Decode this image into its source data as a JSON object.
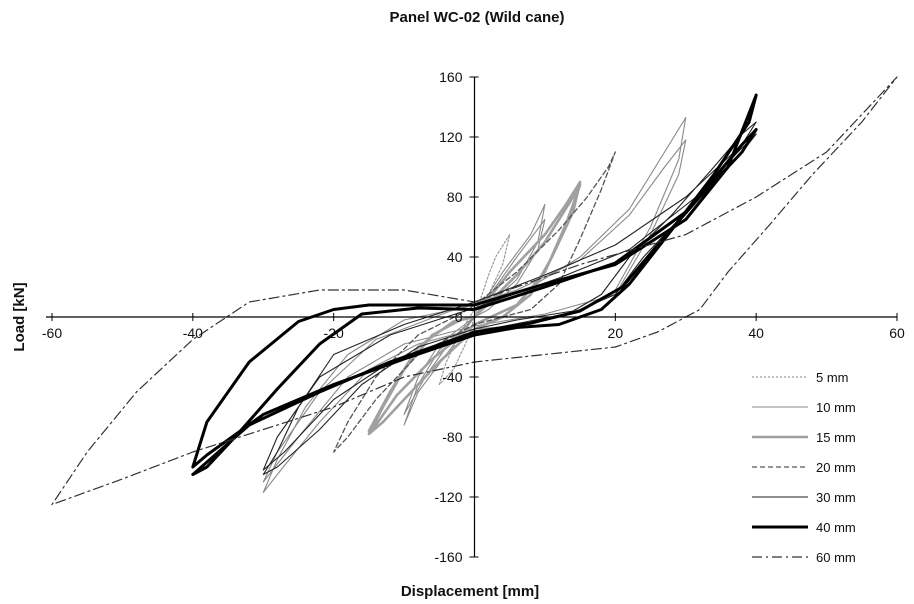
{
  "chart_data": {
    "type": "line",
    "title": "Panel WC-02 (Wild cane)",
    "xlabel": "Displacement [mm]",
    "ylabel": "Load [kN]",
    "xlim": [
      -60,
      60
    ],
    "ylim": [
      -160,
      160
    ],
    "x_ticks": [
      -60,
      -40,
      -20,
      0,
      20,
      40,
      60
    ],
    "y_ticks": [
      -160,
      -120,
      -80,
      -40,
      0,
      40,
      80,
      120,
      160
    ],
    "grid": false,
    "legend_position": "bottom-right",
    "series": [
      {
        "name": "5 mm",
        "style": "dotted",
        "color": "#9a9a9a",
        "loops": [
          [
            [
              0,
              0
            ],
            [
              2,
              28
            ],
            [
              3,
              40
            ],
            [
              5,
              55
            ],
            [
              4,
              35
            ],
            [
              2,
              15
            ],
            [
              0,
              5
            ],
            [
              -2,
              -10
            ],
            [
              -4,
              -30
            ],
            [
              -5,
              -45
            ],
            [
              -3,
              -35
            ],
            [
              -1,
              -15
            ],
            [
              0,
              0
            ]
          ]
        ]
      },
      {
        "name": "10 mm",
        "style": "solid",
        "color": "#8a8a8a",
        "loops": [
          [
            [
              0,
              0
            ],
            [
              4,
              30
            ],
            [
              8,
              55
            ],
            [
              10,
              75
            ],
            [
              9,
              50
            ],
            [
              6,
              25
            ],
            [
              2,
              8
            ],
            [
              0,
              0
            ],
            [
              -4,
              -25
            ],
            [
              -8,
              -50
            ],
            [
              -10,
              -72
            ],
            [
              -8,
              -45
            ],
            [
              -5,
              -22
            ],
            [
              -1,
              -5
            ],
            [
              0,
              0
            ]
          ],
          [
            [
              0,
              0
            ],
            [
              3,
              20
            ],
            [
              6,
              40
            ],
            [
              10,
              65
            ],
            [
              9,
              45
            ],
            [
              6,
              22
            ],
            [
              2,
              5
            ],
            [
              0,
              0
            ],
            [
              -4,
              -20
            ],
            [
              -7,
              -40
            ],
            [
              -10,
              -65
            ],
            [
              -8,
              -40
            ],
            [
              -5,
              -18
            ],
            [
              0,
              0
            ]
          ],
          [
            [
              15,
              40
            ],
            [
              22,
              72
            ],
            [
              27,
              110
            ],
            [
              30,
              133
            ],
            [
              29,
              105
            ],
            [
              25,
              60
            ],
            [
              20,
              18
            ],
            [
              15,
              5
            ],
            [
              8,
              -5
            ],
            [
              0,
              -8
            ],
            [
              -8,
              -18
            ],
            [
              -15,
              -35
            ],
            [
              -22,
              -70
            ],
            [
              -28,
              -105
            ],
            [
              -30,
              -117
            ],
            [
              -28,
              -95
            ],
            [
              -24,
              -60
            ],
            [
              -18,
              -25
            ],
            [
              -10,
              -2
            ],
            [
              0,
              8
            ],
            [
              8,
              20
            ],
            [
              15,
              40
            ]
          ],
          [
            [
              15,
              38
            ],
            [
              22,
              68
            ],
            [
              27,
              100
            ],
            [
              30,
              118
            ],
            [
              29,
              95
            ],
            [
              25,
              55
            ],
            [
              20,
              15
            ],
            [
              10,
              2
            ],
            [
              0,
              -6
            ],
            [
              -10,
              -18
            ],
            [
              -18,
              -40
            ],
            [
              -25,
              -80
            ],
            [
              -30,
              -110
            ],
            [
              -28,
              -90
            ],
            [
              -22,
              -50
            ],
            [
              -14,
              -15
            ],
            [
              -4,
              3
            ],
            [
              6,
              18
            ],
            [
              15,
              38
            ]
          ]
        ]
      },
      {
        "name": "15 mm",
        "style": "solid-thick",
        "color": "#a0a0a0",
        "loops": [
          [
            [
              0,
              0
            ],
            [
              5,
              30
            ],
            [
              10,
              55
            ],
            [
              13,
              75
            ],
            [
              15,
              90
            ],
            [
              14,
              70
            ],
            [
              11,
              40
            ],
            [
              8,
              15
            ],
            [
              4,
              0
            ],
            [
              0,
              -8
            ],
            [
              -5,
              -30
            ],
            [
              -10,
              -55
            ],
            [
              -13,
              -70
            ],
            [
              -15,
              -78
            ],
            [
              -13,
              -60
            ],
            [
              -10,
              -35
            ],
            [
              -6,
              -12
            ],
            [
              -2,
              -2
            ],
            [
              0,
              0
            ]
          ],
          [
            [
              0,
              0
            ],
            [
              6,
              28
            ],
            [
              10,
              50
            ],
            [
              14,
              80
            ],
            [
              15,
              88
            ],
            [
              13,
              62
            ],
            [
              10,
              30
            ],
            [
              6,
              8
            ],
            [
              0,
              -5
            ],
            [
              -6,
              -28
            ],
            [
              -11,
              -52
            ],
            [
              -14,
              -72
            ],
            [
              -15,
              -76
            ],
            [
              -12,
              -50
            ],
            [
              -8,
              -20
            ],
            [
              -3,
              -3
            ],
            [
              0,
              0
            ]
          ]
        ]
      },
      {
        "name": "20 mm",
        "style": "dashed",
        "color": "#555555",
        "loops": [
          [
            [
              0,
              8
            ],
            [
              6,
              30
            ],
            [
              12,
              58
            ],
            [
              16,
              80
            ],
            [
              19,
              100
            ],
            [
              20,
              110
            ],
            [
              18,
              85
            ],
            [
              15,
              52
            ],
            [
              12,
              22
            ],
            [
              8,
              5
            ],
            [
              0,
              -5
            ],
            [
              -8,
              -25
            ],
            [
              -14,
              -55
            ],
            [
              -18,
              -80
            ],
            [
              -20,
              -90
            ],
            [
              -18,
              -70
            ],
            [
              -14,
              -40
            ],
            [
              -8,
              -12
            ],
            [
              -2,
              2
            ],
            [
              0,
              8
            ]
          ]
        ]
      },
      {
        "name": "30 mm",
        "style": "solid",
        "color": "#222222",
        "loops": [
          [
            [
              -20,
              -25
            ],
            [
              -10,
              -5
            ],
            [
              0,
              10
            ],
            [
              10,
              28
            ],
            [
              20,
              48
            ],
            [
              30,
              80
            ],
            [
              38,
              115
            ],
            [
              40,
              130
            ],
            [
              38,
              122
            ],
            [
              34,
              100
            ],
            [
              28,
              68
            ],
            [
              22,
              40
            ],
            [
              18,
              15
            ],
            [
              14,
              4
            ],
            [
              6,
              -2
            ],
            [
              0,
              -8
            ],
            [
              -8,
              -20
            ],
            [
              -16,
              -45
            ],
            [
              -22,
              -75
            ],
            [
              -28,
              -100
            ],
            [
              -30,
              -105
            ],
            [
              -28,
              -90
            ],
            [
              -25,
              -60
            ],
            [
              -20,
              -25
            ]
          ],
          [
            [
              -22,
              -40
            ],
            [
              -12,
              -12
            ],
            [
              0,
              6
            ],
            [
              12,
              26
            ],
            [
              22,
              45
            ],
            [
              32,
              82
            ],
            [
              38,
              110
            ],
            [
              40,
              122
            ],
            [
              37,
              108
            ],
            [
              30,
              70
            ],
            [
              24,
              40
            ],
            [
              20,
              15
            ],
            [
              14,
              3
            ],
            [
              0,
              -10
            ],
            [
              -12,
              -30
            ],
            [
              -20,
              -55
            ],
            [
              -27,
              -90
            ],
            [
              -30,
              -102
            ],
            [
              -28,
              -80
            ],
            [
              -22,
              -40
            ]
          ]
        ]
      },
      {
        "name": "40 mm",
        "style": "solid-heavy",
        "color": "#000000",
        "loops": [
          [
            [
              0,
              8
            ],
            [
              10,
              22
            ],
            [
              20,
              35
            ],
            [
              30,
              65
            ],
            [
              36,
              100
            ],
            [
              40,
              148
            ],
            [
              39,
              130
            ],
            [
              34,
              95
            ],
            [
              28,
              58
            ],
            [
              22,
              22
            ],
            [
              18,
              5
            ],
            [
              12,
              -5
            ],
            [
              6,
              -7
            ],
            [
              0,
              -12
            ],
            [
              -10,
              -28
            ],
            [
              -20,
              -45
            ],
            [
              -30,
              -65
            ],
            [
              -38,
              -92
            ],
            [
              -40,
              -100
            ],
            [
              -38,
              -70
            ],
            [
              -32,
              -30
            ],
            [
              -25,
              -3
            ],
            [
              -20,
              5
            ],
            [
              -15,
              8
            ],
            [
              -10,
              8
            ],
            [
              -5,
              8
            ],
            [
              0,
              8
            ]
          ],
          [
            [
              0,
              5
            ],
            [
              10,
              20
            ],
            [
              20,
              36
            ],
            [
              30,
              70
            ],
            [
              38,
              115
            ],
            [
              40,
              125
            ],
            [
              38,
              110
            ],
            [
              32,
              80
            ],
            [
              26,
              48
            ],
            [
              21,
              20
            ],
            [
              15,
              4
            ],
            [
              8,
              -4
            ],
            [
              0,
              -10
            ],
            [
              -12,
              -30
            ],
            [
              -22,
              -50
            ],
            [
              -32,
              -72
            ],
            [
              -40,
              -105
            ],
            [
              -38,
              -100
            ],
            [
              -34,
              -80
            ],
            [
              -28,
              -48
            ],
            [
              -22,
              -18
            ],
            [
              -16,
              2
            ],
            [
              -8,
              6
            ],
            [
              0,
              5
            ]
          ]
        ]
      },
      {
        "name": "60 mm",
        "style": "dash-dot",
        "color": "#333333",
        "loops": [
          [
            [
              0,
              10
            ],
            [
              15,
              35
            ],
            [
              30,
              55
            ],
            [
              40,
              80
            ],
            [
              50,
              110
            ],
            [
              60,
              160
            ],
            [
              55,
              130
            ],
            [
              48,
              95
            ],
            [
              42,
              62
            ],
            [
              36,
              30
            ],
            [
              32,
              5
            ],
            [
              26,
              -10
            ],
            [
              20,
              -20
            ],
            [
              10,
              -25
            ],
            [
              0,
              -30
            ],
            [
              -10,
              -40
            ],
            [
              -20,
              -60
            ],
            [
              -30,
              -75
            ],
            [
              -40,
              -90
            ],
            [
              -50,
              -108
            ],
            [
              -60,
              -125
            ],
            [
              -55,
              -90
            ],
            [
              -48,
              -50
            ],
            [
              -40,
              -15
            ],
            [
              -32,
              10
            ],
            [
              -22,
              18
            ],
            [
              -10,
              18
            ],
            [
              0,
              10
            ]
          ]
        ]
      }
    ]
  }
}
